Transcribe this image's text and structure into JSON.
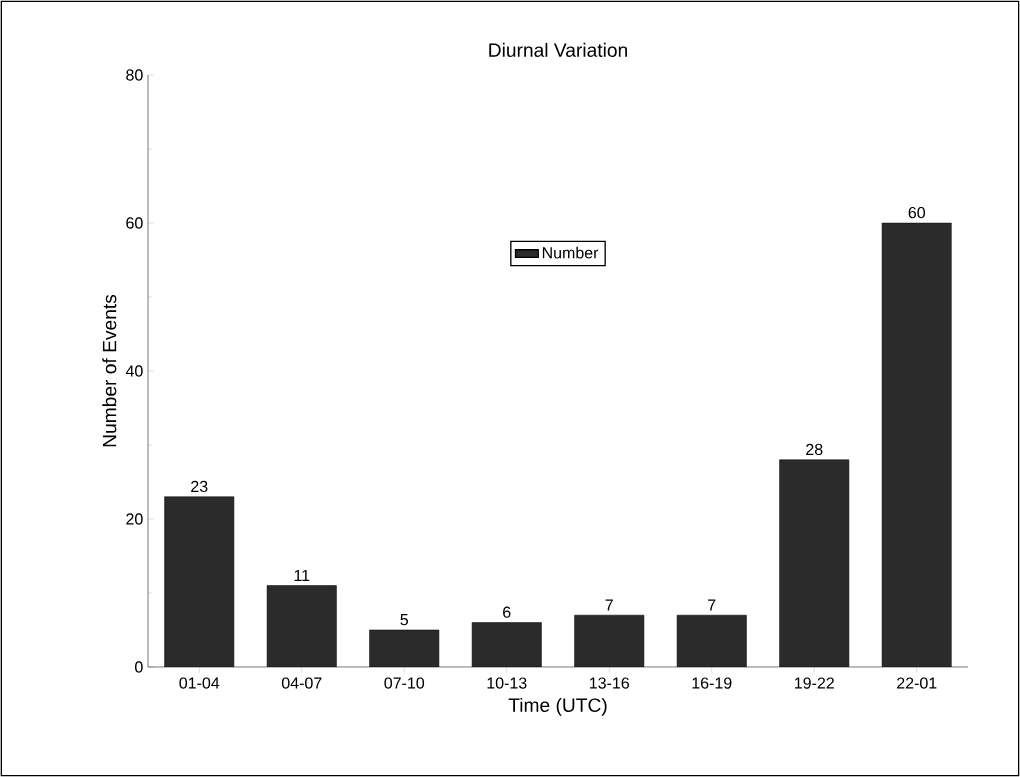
{
  "chart_data": {
    "type": "bar",
    "title": "Diurnal Variation",
    "xlabel": "Time (UTC)",
    "ylabel": "Number of Events",
    "categories": [
      "01-04",
      "04-07",
      "07-10",
      "10-13",
      "13-16",
      "16-19",
      "19-22",
      "22-01"
    ],
    "series": [
      {
        "name": "Number",
        "color": "#2b2b2b",
        "values": [
          23,
          11,
          5,
          6,
          7,
          7,
          28,
          60
        ]
      }
    ],
    "ylim": [
      0,
      80
    ],
    "yticks": [
      0,
      20,
      40,
      60,
      80
    ],
    "data_labels": true,
    "legend": "top"
  }
}
